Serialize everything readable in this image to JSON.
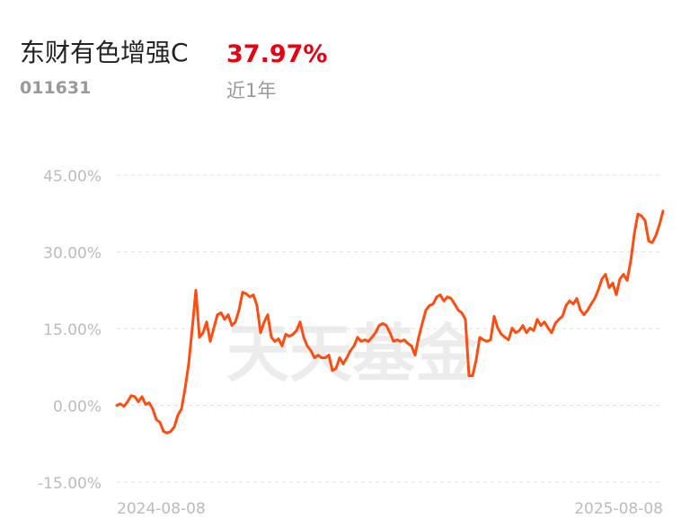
{
  "header": {
    "title": "东财有色增强C",
    "return": {
      "value": 37.97,
      "label": "37.97%"
    },
    "code": "011631",
    "period": "近1年"
  },
  "watermark": "天天基金",
  "chart_data": {
    "type": "line",
    "categories": [
      "2024-08-08",
      null,
      null,
      null,
      null,
      null,
      null,
      null,
      null,
      null,
      null,
      null,
      null,
      null,
      null,
      null,
      null,
      null,
      null,
      null,
      null,
      null,
      null,
      null,
      null,
      null,
      null,
      null,
      null,
      null,
      null,
      null,
      null,
      null,
      null,
      null,
      null,
      null,
      null,
      null,
      null,
      null,
      null,
      null,
      null,
      null,
      null,
      null,
      null,
      null,
      null,
      null,
      null,
      null,
      null,
      null,
      null,
      null,
      null,
      null,
      null,
      null,
      null,
      null,
      null,
      null,
      null,
      null,
      null,
      null,
      null,
      null,
      null,
      null,
      null,
      null,
      null,
      null,
      null,
      null,
      null,
      null,
      null,
      null,
      null,
      null,
      null,
      null,
      null,
      null,
      null,
      null,
      null,
      null,
      null,
      null,
      null,
      null,
      null,
      null,
      null,
      null,
      null,
      null,
      null,
      null,
      null,
      null,
      null,
      null,
      null,
      null,
      null,
      null,
      null,
      null,
      null,
      null,
      null,
      null,
      null,
      null,
      null,
      null,
      null,
      null,
      null,
      null,
      null,
      null,
      null,
      null,
      null,
      null,
      null,
      null,
      null,
      null,
      null,
      null,
      null,
      null,
      null,
      null,
      null,
      null,
      null,
      null,
      null,
      null,
      null,
      null,
      "2025-08-08"
    ],
    "series": [
      {
        "color": "#ff4d12",
        "values": [
          0,
          0.3,
          -0.2,
          0.7,
          1.9,
          1.7,
          0.7,
          1.7,
          0.2,
          0.5,
          -0.7,
          -2.8,
          -3.3,
          -5.1,
          -5.4,
          -5.1,
          -4.2,
          -1.9,
          -0.7,
          3.3,
          8.1,
          15.1,
          22.5,
          13.3,
          14.2,
          16.3,
          12.5,
          15.1,
          17.7,
          18.1,
          16.8,
          17.7,
          15.6,
          16.3,
          18.6,
          22.1,
          21.8,
          21.2,
          21.6,
          19.5,
          14.2,
          16.3,
          17.7,
          13.3,
          12.5,
          13.0,
          11.6,
          13.9,
          13.5,
          13.9,
          14.6,
          16.3,
          13.3,
          11.6,
          10.7,
          9.3,
          9.8,
          9.3,
          9.3,
          9.8,
          6.8,
          7.2,
          9.3,
          8.1,
          9.3,
          10.7,
          11.6,
          13.3,
          12.5,
          12.8,
          12.5,
          13.3,
          14.2,
          15.6,
          16.0,
          15.6,
          14.2,
          12.5,
          12.8,
          12.5,
          12.8,
          12.1,
          11.6,
          9.8,
          13.3,
          16.0,
          18.6,
          19.5,
          19.8,
          21.2,
          21.6,
          20.4,
          21.2,
          20.9,
          19.8,
          18.6,
          18.1,
          16.8,
          5.8,
          5.8,
          8.9,
          13.3,
          12.8,
          12.5,
          12.8,
          17.4,
          15.1,
          13.9,
          13.3,
          12.8,
          15.1,
          14.2,
          14.6,
          15.6,
          14.2,
          15.1,
          14.6,
          16.8,
          15.6,
          16.3,
          15.1,
          14.2,
          16.0,
          16.8,
          17.4,
          19.5,
          20.4,
          19.8,
          20.9,
          18.6,
          17.7,
          18.6,
          19.8,
          20.9,
          22.6,
          24.7,
          25.6,
          23.0,
          23.9,
          21.6,
          24.7,
          25.6,
          24.4,
          28.2,
          33.5,
          37.4,
          37.0,
          36.1,
          32.1,
          31.8,
          33.2,
          35.3,
          37.97
        ]
      }
    ],
    "ylim": [
      -15,
      45
    ],
    "yticks": [
      {
        "value": -15,
        "label": "-15.00%"
      },
      {
        "value": 0,
        "label": "0.00%"
      },
      {
        "value": 15,
        "label": "15.00%"
      },
      {
        "value": 30,
        "label": "30.00%"
      },
      {
        "value": 45,
        "label": "45.00%"
      }
    ],
    "grid": true
  }
}
